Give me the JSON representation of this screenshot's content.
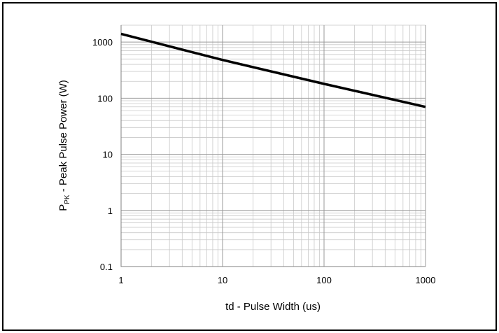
{
  "chart_data": {
    "type": "line",
    "title": "",
    "xlabel": "td - Pulse Width (us)",
    "ylabel": {
      "prefix": "P",
      "subscript": "PK",
      "suffix": " - Peak Pulse Power (W)"
    },
    "x_scale": "log",
    "y_scale": "log",
    "xlim": [
      1,
      1000
    ],
    "ylim": [
      0.1,
      2000
    ],
    "x_ticks": [
      {
        "value": 1,
        "label": "1"
      },
      {
        "value": 10,
        "label": "10"
      },
      {
        "value": 100,
        "label": "100"
      },
      {
        "value": 1000,
        "label": "1000"
      }
    ],
    "y_ticks": [
      {
        "value": 0.1,
        "label": "0.1"
      },
      {
        "value": 1,
        "label": "1"
      },
      {
        "value": 10,
        "label": "10"
      },
      {
        "value": 100,
        "label": "100"
      },
      {
        "value": 1000,
        "label": "1000"
      }
    ],
    "grid": true,
    "legend": "none",
    "series": [
      {
        "color": "#000000",
        "x": [
          1,
          10,
          100,
          1000
        ],
        "y": [
          1400,
          480,
          180,
          70
        ]
      }
    ]
  }
}
